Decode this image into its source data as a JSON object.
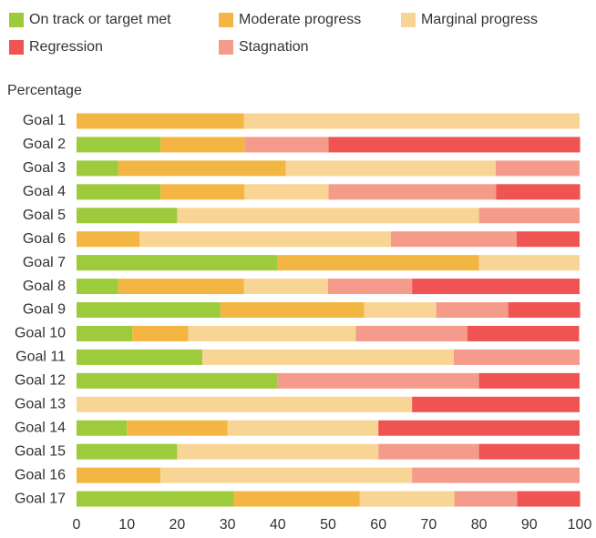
{
  "chart_data": {
    "type": "stacked_barh",
    "axis_label": "Percentage",
    "categories": [
      "Goal 1",
      "Goal 2",
      "Goal 3",
      "Goal 4",
      "Goal 5",
      "Goal 6",
      "Goal 7",
      "Goal 8",
      "Goal 9",
      "Goal 10",
      "Goal 11",
      "Goal 12",
      "Goal 13",
      "Goal 14",
      "Goal 15",
      "Goal 16",
      "Goal 17"
    ],
    "series": [
      {
        "name": "On track or target met",
        "color": "#9dcb3b",
        "values": [
          0,
          16.7,
          8.3,
          16.7,
          20,
          0,
          40,
          8.3,
          28.6,
          11.1,
          25,
          40,
          0,
          10,
          20,
          0,
          31.3
        ]
      },
      {
        "name": "Moderate progress",
        "color": "#f4b642",
        "values": [
          33.3,
          16.7,
          33.3,
          16.7,
          0,
          12.5,
          40,
          25,
          28.6,
          11.1,
          0,
          0,
          0,
          20,
          0,
          16.7,
          25
        ]
      },
      {
        "name": "Marginal progress",
        "color": "#f8d595",
        "values": [
          66.7,
          0,
          41.7,
          16.7,
          60,
          50,
          20,
          16.7,
          14.3,
          33.3,
          50,
          0,
          66.7,
          30,
          40,
          50,
          18.8
        ]
      },
      {
        "name": "Stagnation",
        "color": "#f59b8b",
        "values": [
          0,
          16.7,
          16.7,
          33.3,
          20,
          25,
          0,
          16.7,
          14.3,
          22.2,
          25,
          40,
          0,
          0,
          20,
          33.3,
          12.5
        ]
      },
      {
        "name": "Regression",
        "color": "#ef5352",
        "values": [
          0,
          50,
          0,
          16.7,
          0,
          12.5,
          0,
          33.3,
          14.3,
          22.2,
          0,
          20,
          33.3,
          40,
          20,
          0,
          12.5
        ]
      }
    ],
    "xlim": [
      0,
      100
    ],
    "xticks": [
      0,
      10,
      20,
      30,
      40,
      50,
      60,
      70,
      80,
      90,
      100
    ]
  }
}
